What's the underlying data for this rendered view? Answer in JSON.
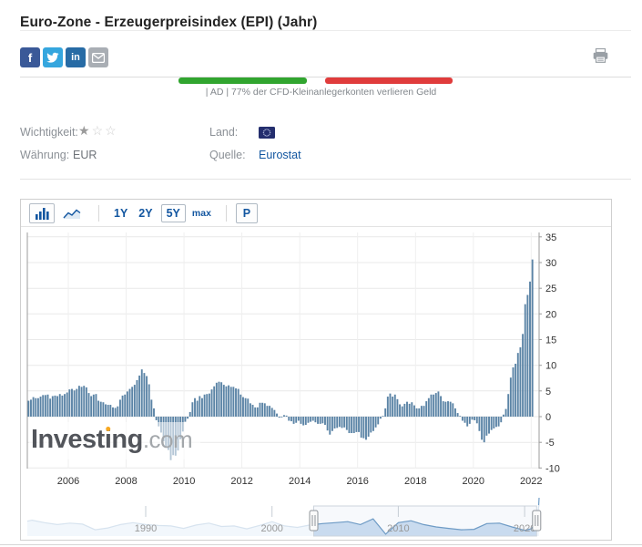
{
  "page": {
    "title": "Euro-Zone - Erzeugerpreisindex (EPI) (Jahr)"
  },
  "share": {
    "icons": [
      "facebook",
      "twitter",
      "linkedin",
      "email"
    ],
    "colors": {
      "facebook": "#3a5998",
      "twitter": "#35a6de",
      "linkedin": "#276ba5",
      "email": "#a9aeb4"
    }
  },
  "print_icon": "printer",
  "ad": {
    "caption": "| AD | 77% der CFD-Kleinanlegerkonten verlieren Geld",
    "green_color": "#31a52f",
    "red_color": "#e03c3c"
  },
  "info": {
    "importance_label": "Wichtigkeit:",
    "importance_stars_filled": 1,
    "importance_stars_total": 3,
    "currency_label": "Währung:",
    "currency_value": "EUR",
    "country_label": "Land:",
    "country_flag": "european-union",
    "source_label": "Quelle:",
    "source_value": "Eurostat",
    "source_color": "#1256a0"
  },
  "toolbar": {
    "chart_type_icons": [
      "bar-chart",
      "line-chart"
    ],
    "active_chart_type": "bar-chart",
    "ranges": [
      "1Y",
      "2Y",
      "5Y",
      "max"
    ],
    "selected_range": "5Y",
    "p_label": "P",
    "accent_color": "#1256a0"
  },
  "watermark": {
    "brand": "Investing",
    "tld": ".com",
    "dot_color": "#f7a821"
  },
  "chart_data": {
    "type": "bar",
    "title": "",
    "ylabel": "",
    "xlabel": "",
    "unit": "%",
    "interval": "monthly",
    "start": "2004-08",
    "end": "2022-01",
    "bar_color": "#5b84a6",
    "grid": true,
    "ylim": [
      -10.2,
      35.9
    ],
    "yticks": [
      -10,
      -5,
      0,
      5,
      10,
      15,
      20,
      25,
      30,
      35
    ],
    "xticks": [
      2006,
      2008,
      2010,
      2012,
      2014,
      2016,
      2018,
      2020,
      2022
    ],
    "values": [
      3.1,
      3.3,
      3.8,
      3.6,
      3.6,
      3.9,
      4.2,
      4.2,
      4.3,
      3.5,
      4.0,
      4.1,
      4.0,
      4.4,
      4.1,
      4.4,
      4.7,
      5.3,
      5.4,
      5.1,
      5.4,
      6.0,
      5.8,
      6.0,
      5.7,
      4.6,
      4.0,
      4.3,
      4.4,
      3.1,
      2.9,
      2.8,
      2.4,
      2.3,
      2.3,
      1.8,
      1.7,
      2.0,
      3.3,
      4.1,
      4.3,
      4.9,
      5.4,
      5.8,
      6.2,
      7.1,
      8.0,
      9.2,
      8.5,
      7.9,
      6.3,
      3.3,
      1.6,
      -0.7,
      -1.9,
      -3.1,
      -4.8,
      -5.9,
      -6.5,
      -8.4,
      -7.5,
      -7.6,
      -6.6,
      -4.4,
      -2.9,
      -1.0,
      -0.4,
      0.9,
      2.8,
      3.6,
      3.1,
      4.0,
      3.6,
      4.3,
      4.4,
      4.5,
      5.3,
      5.9,
      6.6,
      6.8,
      6.7,
      6.2,
      5.9,
      6.1,
      5.8,
      5.8,
      5.5,
      5.4,
      4.3,
      3.8,
      3.6,
      3.5,
      2.6,
      2.3,
      1.8,
      1.8,
      2.7,
      2.7,
      2.6,
      2.1,
      2.1,
      1.7,
      1.3,
      0.6,
      -0.2,
      -0.1,
      0.3,
      0.2,
      -0.8,
      -0.9,
      -1.4,
      -1.2,
      -0.8,
      -1.4,
      -1.7,
      -1.6,
      -1.2,
      -1.0,
      -0.8,
      -1.1,
      -1.4,
      -1.4,
      -1.3,
      -1.6,
      -2.7,
      -3.5,
      -2.8,
      -2.3,
      -2.2,
      -2.0,
      -2.2,
      -2.1,
      -2.6,
      -3.2,
      -3.2,
      -3.2,
      -3.0,
      -3.0,
      -4.1,
      -4.2,
      -4.5,
      -3.9,
      -3.1,
      -2.8,
      -2.1,
      -1.5,
      -0.4,
      0.1,
      1.6,
      3.9,
      4.5,
      3.9,
      4.3,
      3.4,
      2.4,
      2.0,
      2.5,
      2.9,
      2.5,
      2.8,
      2.2,
      1.6,
      1.6,
      2.1,
      2.1,
      3.0,
      3.6,
      4.3,
      4.3,
      4.6,
      4.9,
      4.0,
      3.0,
      2.9,
      3.0,
      2.9,
      2.6,
      1.6,
      0.7,
      0.1,
      -0.8,
      -1.2,
      -1.9,
      -1.4,
      -0.6,
      -0.7,
      -1.3,
      -2.8,
      -4.5,
      -5.0,
      -3.7,
      -3.3,
      -2.6,
      -2.3,
      -2.0,
      -1.9,
      -1.1,
      0.4,
      1.5,
      4.4,
      7.6,
      9.6,
      10.3,
      12.4,
      13.5,
      16.1,
      21.9,
      23.7,
      26.3,
      30.6
    ],
    "navigator": {
      "type": "area",
      "xticks": [
        1990,
        2000,
        2010,
        2020
      ],
      "selected_range_years": [
        2003.3,
        2020.95
      ],
      "line_color": "#6f9cc6",
      "fill_color": "#cfe0f2",
      "x": [
        1980.6,
        1981,
        1982,
        1983,
        1984,
        1985,
        1986,
        1987,
        1988,
        1989,
        1990,
        1991,
        1992,
        1993,
        1994,
        1995,
        1996,
        1997,
        1998,
        1999,
        2000,
        2001,
        2002,
        2003,
        2004,
        2005,
        2006,
        2007,
        2008,
        2009,
        2010,
        2011,
        2012,
        2013,
        2014,
        2015,
        2016,
        2017,
        2018,
        2019,
        2020,
        2020.5,
        2020.8,
        2021.0,
        2021.1,
        2021.2
      ],
      "values": [
        6,
        7,
        4.5,
        2.5,
        4,
        3,
        -3,
        -1,
        2.5,
        4.5,
        2.5,
        1.5,
        1,
        -1.5,
        2,
        4,
        0.5,
        1,
        -2,
        1.5,
        5.5,
        1,
        -0.5,
        2,
        3.5,
        4.5,
        5.5,
        2.5,
        8.5,
        -7.5,
        4.5,
        6.5,
        2.5,
        0,
        -1.5,
        -3,
        -2.5,
        3.5,
        4,
        0,
        -3.5,
        -2,
        2,
        10,
        20,
        30.5
      ]
    }
  }
}
